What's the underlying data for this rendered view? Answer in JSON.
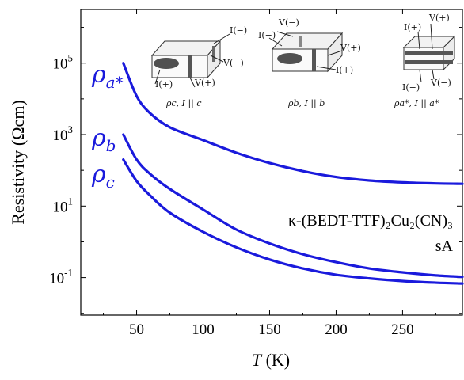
{
  "chart_data": {
    "type": "line",
    "xlabel_var": "T",
    "xlabel_unit": "(K)",
    "ylabel": "Resistivity (Ωcm)",
    "xlim": [
      8,
      295
    ],
    "ylim_log10": [
      -2.05,
      6.5
    ],
    "y_scale": "log",
    "x_ticks": [
      50,
      100,
      150,
      200,
      250
    ],
    "y_tick_exponents": [
      -1,
      1,
      3,
      5
    ],
    "y_tick_base": "10",
    "series": [
      {
        "name_base": "ρ",
        "name_sub": "a*",
        "color": "#1a1adc",
        "x": [
          40,
          50,
          60,
          75,
          100,
          125,
          150,
          175,
          200,
          225,
          250,
          275,
          295
        ],
        "y": [
          100000,
          12000,
          4000,
          1600,
          700,
          310,
          160,
          95,
          65,
          52,
          46,
          43,
          42
        ]
      },
      {
        "name_base": "ρ",
        "name_sub": "b",
        "color": "#1a1adc",
        "x": [
          40,
          50,
          60,
          75,
          100,
          125,
          150,
          175,
          200,
          225,
          250,
          275,
          295
        ],
        "y": [
          1000,
          200,
          80,
          30,
          8,
          2.2,
          0.9,
          0.45,
          0.27,
          0.18,
          0.14,
          0.115,
          0.105
        ]
      },
      {
        "name_base": "ρ",
        "name_sub": "c",
        "color": "#1a1adc",
        "x": [
          40,
          50,
          60,
          75,
          100,
          125,
          150,
          175,
          200,
          225,
          250,
          275,
          295
        ],
        "y": [
          200,
          50,
          20,
          6.5,
          1.9,
          0.7,
          0.32,
          0.18,
          0.12,
          0.095,
          0.08,
          0.072,
          0.068
        ]
      }
    ],
    "annotation": {
      "compound": "κ-(BEDT-TTF)₂Cu₂(CN)₃",
      "sample": "sA"
    },
    "insets": [
      {
        "label": "ρc, I || c",
        "i_minus": "I(−)",
        "i_plus": "I(+)",
        "v_minus": "V(−)",
        "v_plus": "V(+)"
      },
      {
        "label": "ρb, I || b",
        "i_minus": "I(−)",
        "i_plus": "I(+)",
        "v_minus": "V(−)",
        "v_plus": "V(+)"
      },
      {
        "label": "ρa*, I || a*",
        "i_minus": "I(−)",
        "i_plus": "I(+)",
        "v_minus": "V(−)",
        "v_plus": "V(+)"
      }
    ]
  }
}
